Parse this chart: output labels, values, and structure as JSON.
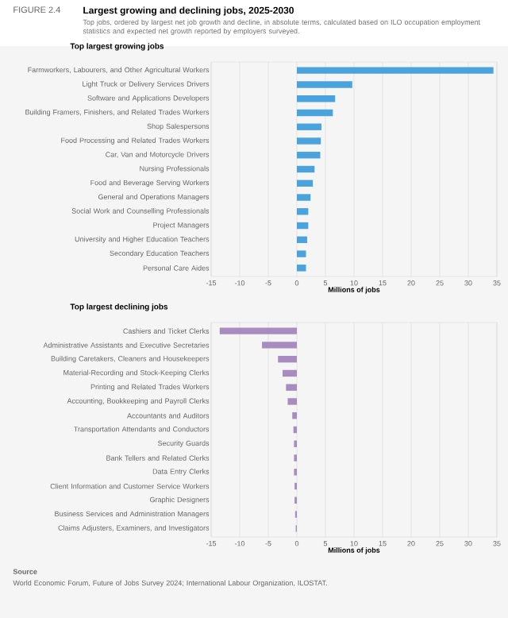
{
  "chart_data": [
    {
      "type": "other",
      "title": "Largest growing and declining jobs, 2025-2030",
      "subtitle": "Top jobs, ordered by largest net job growth and decline, in absolute terms, calculated based on ILO occupation employment statistics and expected net growth reported by employers surveyed.",
      "annotations": [
        "FIGURE 2.4"
      ]
    },
    {
      "type": "bar",
      "orientation": "horizontal",
      "title": "Top largest growing jobs",
      "xlabel": "Millions of jobs",
      "grid": "x",
      "categories": [
        "Farmworkers, Labourers, and Other Agricultural Workers",
        "Light Truck or Delivery Services Drivers",
        "Software and Applications Developers",
        "Building Framers, Finishers, and Related Trades Workers",
        "Shop Salespersons",
        "Food Processing and Related Trades Workers",
        "Car, Van and Motorcycle Drivers",
        "Nursing Professionals",
        "Food and Beverage Serving Workers",
        "General and Operations Managers",
        "Social Work and Counselling Professionals",
        "Project Managers",
        "University and Higher Education Teachers",
        "Secondary Education Teachers",
        "Personal Care Aides"
      ],
      "values": [
        34.4,
        9.7,
        6.7,
        6.3,
        4.3,
        4.2,
        4.1,
        3.1,
        2.8,
        2.4,
        2.0,
        2.0,
        1.8,
        1.6,
        1.6
      ],
      "color": "#4aa3dc",
      "xlim": [
        -15,
        35
      ],
      "xticks": [
        -15,
        -10,
        -5,
        0,
        5,
        10,
        15,
        20,
        25,
        30,
        35
      ]
    },
    {
      "type": "bar",
      "orientation": "horizontal",
      "title": "Top largest declining jobs",
      "xlabel": "Millions of jobs",
      "grid": "x",
      "categories": [
        "Cashiers and Ticket Clerks",
        "Administrative Assistants and Executive Secretaries",
        "Building Caretakers, Cleaners and Housekeepers",
        "Material-Recording and Stock-Keeping Clerks",
        "Printing and Related Trades Workers",
        "Accounting, Bookkeeping and Payroll Clerks",
        "Accountants and Auditors",
        "Transportation Attendants and Conductors",
        "Security Guards",
        "Bank Tellers and Related Clerks",
        "Data Entry Clerks",
        "Client Information and Customer Service Workers",
        "Graphic Designers",
        "Business Services and Administration Managers",
        "Claims Adjusters, Examiners, and Investigators"
      ],
      "values": [
        -13.5,
        -6.1,
        -3.3,
        -2.5,
        -1.9,
        -1.6,
        -0.8,
        -0.6,
        -0.5,
        -0.5,
        -0.5,
        -0.4,
        -0.4,
        -0.3,
        -0.2
      ],
      "color": "#a98cbf",
      "xlim": [
        -15,
        35
      ],
      "xticks": [
        -15,
        -10,
        -5,
        0,
        5,
        10,
        15,
        20,
        25,
        30,
        35
      ],
      "annotations": [
        "Source",
        "World Economic Forum, Future of Jobs Survey 2024; International Labour Organization, ILOSTAT."
      ]
    }
  ]
}
